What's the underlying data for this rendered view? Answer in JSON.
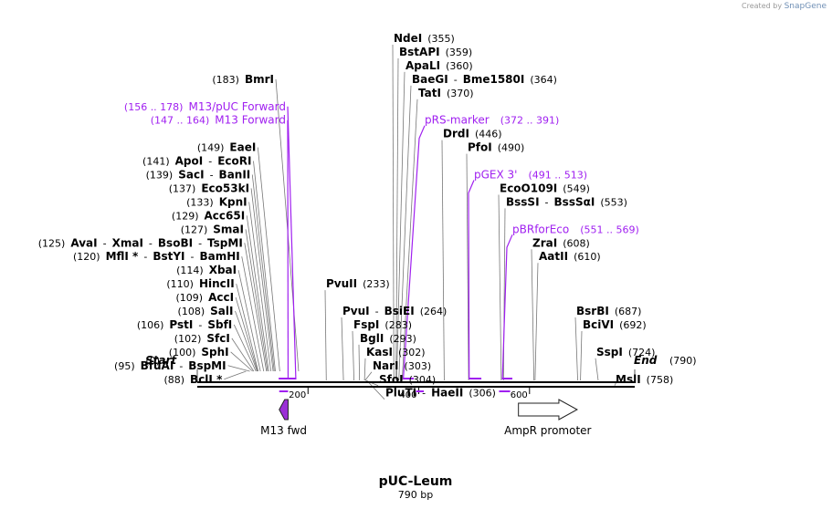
{
  "credit": {
    "prefix": "Created by",
    "brand": "SnapGene"
  },
  "map": {
    "name": "pUC-Leum",
    "length_text": "790 bp",
    "start_label": "Start",
    "start_pos": "(0)",
    "end_label": "End",
    "end_pos": "(790)",
    "total_bp": 790,
    "ticks": [
      {
        "bp": 200,
        "label": "200"
      },
      {
        "bp": 400,
        "label": "400"
      },
      {
        "bp": 600,
        "label": "600"
      }
    ]
  },
  "enzymes": [
    {
      "id": "bmri",
      "parts": [
        "BmrI"
      ],
      "pos": "(183)",
      "bp": 183,
      "posFirst": true,
      "row": 3
    },
    {
      "id": "eaei",
      "parts": [
        "EaeI"
      ],
      "pos": "(149)",
      "bp": 149,
      "posFirst": true,
      "row": 8
    },
    {
      "id": "apoi",
      "parts": [
        "ApoI",
        "EcoRI"
      ],
      "pos": "(141)",
      "bp": 141,
      "posFirst": true,
      "row": 9
    },
    {
      "id": "saci",
      "parts": [
        "SacI",
        "BanII"
      ],
      "pos": "(139)",
      "bp": 139,
      "posFirst": true,
      "row": 10
    },
    {
      "id": "eco53ki",
      "parts": [
        "Eco53kI"
      ],
      "pos": "(137)",
      "bp": 137,
      "posFirst": true,
      "row": 11
    },
    {
      "id": "kpni",
      "parts": [
        "KpnI"
      ],
      "pos": "(133)",
      "bp": 133,
      "posFirst": true,
      "row": 12
    },
    {
      "id": "acc65i",
      "parts": [
        "Acc65I"
      ],
      "pos": "(129)",
      "bp": 129,
      "posFirst": true,
      "row": 13
    },
    {
      "id": "smai",
      "parts": [
        "SmaI"
      ],
      "pos": "(127)",
      "bp": 127,
      "posFirst": true,
      "row": 14
    },
    {
      "id": "avai",
      "parts": [
        "AvaI",
        "XmaI",
        "BsoBI",
        "TspMI"
      ],
      "pos": "(125)",
      "bp": 125,
      "posFirst": true,
      "row": 15
    },
    {
      "id": "mfli",
      "parts": [
        "MflI *",
        "BstYI",
        "BamHI"
      ],
      "pos": "(120)",
      "bp": 120,
      "posFirst": true,
      "row": 16
    },
    {
      "id": "xbai",
      "parts": [
        "XbaI"
      ],
      "pos": "(114)",
      "bp": 114,
      "posFirst": true,
      "row": 17
    },
    {
      "id": "hincii",
      "parts": [
        "HincII"
      ],
      "pos": "(110)",
      "bp": 110,
      "posFirst": true,
      "row": 18
    },
    {
      "id": "acci",
      "parts": [
        "AccI"
      ],
      "pos": "(109)",
      "bp": 109,
      "posFirst": true,
      "row": 19
    },
    {
      "id": "sali",
      "parts": [
        "SalI"
      ],
      "pos": "(108)",
      "bp": 108,
      "posFirst": true,
      "row": 20
    },
    {
      "id": "psti",
      "parts": [
        "PstI",
        "SbfI"
      ],
      "pos": "(106)",
      "bp": 106,
      "posFirst": true,
      "row": 21
    },
    {
      "id": "sfci",
      "parts": [
        "SfcI"
      ],
      "pos": "(102)",
      "bp": 102,
      "posFirst": true,
      "row": 22
    },
    {
      "id": "sphi",
      "parts": [
        "SphI"
      ],
      "pos": "(100)",
      "bp": 100,
      "posFirst": true,
      "row": 23
    },
    {
      "id": "bfuai",
      "parts": [
        "BfuAI",
        "BspMI"
      ],
      "pos": "(95)",
      "bp": 95,
      "posFirst": true,
      "row": 24
    },
    {
      "id": "bcli",
      "parts": [
        "BclI *"
      ],
      "pos": "(88)",
      "bp": 88,
      "posFirst": true,
      "row": 25
    },
    {
      "id": "ndei",
      "parts": [
        "NdeI"
      ],
      "pos": "(355)",
      "bp": 355,
      "posFirst": false,
      "row": 0
    },
    {
      "id": "bstapi",
      "parts": [
        "BstAPI"
      ],
      "pos": "(359)",
      "bp": 359,
      "posFirst": false,
      "row": 1
    },
    {
      "id": "apali",
      "parts": [
        "ApaLI"
      ],
      "pos": "(360)",
      "bp": 360,
      "posFirst": false,
      "row": 2
    },
    {
      "id": "baegi",
      "parts": [
        "BaeGI",
        "Bme1580I"
      ],
      "pos": "(364)",
      "bp": 364,
      "posFirst": false,
      "row": 3
    },
    {
      "id": "tati",
      "parts": [
        "TatI"
      ],
      "pos": "(370)",
      "bp": 370,
      "posFirst": false,
      "row": 4
    },
    {
      "id": "drdi",
      "parts": [
        "DrdI"
      ],
      "pos": "(446)",
      "bp": 446,
      "posFirst": false,
      "row": 7
    },
    {
      "id": "pfoi",
      "parts": [
        "PfoI"
      ],
      "pos": "(490)",
      "bp": 490,
      "posFirst": false,
      "row": 8
    },
    {
      "id": "ecoo109i",
      "parts": [
        "EcoO109I"
      ],
      "pos": "(549)",
      "bp": 549,
      "posFirst": false,
      "row": 11
    },
    {
      "id": "bsssi",
      "parts": [
        "BssSI",
        "BssSαI"
      ],
      "pos": "(553)",
      "bp": 553,
      "posFirst": false,
      "row": 12
    },
    {
      "id": "zrai",
      "parts": [
        "ZraI"
      ],
      "pos": "(608)",
      "bp": 608,
      "posFirst": false,
      "row": 15
    },
    {
      "id": "aatii",
      "parts": [
        "AatII"
      ],
      "pos": "(610)",
      "bp": 610,
      "posFirst": false,
      "row": 16
    },
    {
      "id": "pvuii",
      "parts": [
        "PvuII"
      ],
      "pos": "(233)",
      "bp": 233,
      "posFirst": false,
      "row": 18
    },
    {
      "id": "pvui",
      "parts": [
        "PvuI",
        "BsiEI"
      ],
      "pos": "(264)",
      "bp": 264,
      "posFirst": false,
      "row": 20
    },
    {
      "id": "fspi",
      "parts": [
        "FspI"
      ],
      "pos": "(283)",
      "bp": 283,
      "posFirst": false,
      "row": 21
    },
    {
      "id": "bgli",
      "parts": [
        "BglI"
      ],
      "pos": "(293)",
      "bp": 293,
      "posFirst": false,
      "row": 22
    },
    {
      "id": "kasi",
      "parts": [
        "KasI"
      ],
      "pos": "(302)",
      "bp": 302,
      "posFirst": false,
      "row": 23
    },
    {
      "id": "nari",
      "parts": [
        "NarI"
      ],
      "pos": "(303)",
      "bp": 303,
      "posFirst": false,
      "row": 24
    },
    {
      "id": "sfoi",
      "parts": [
        "SfoI"
      ],
      "pos": "(304)",
      "bp": 304,
      "posFirst": false,
      "row": 25
    },
    {
      "id": "pluti",
      "parts": [
        "PluTI",
        "HaeII"
      ],
      "pos": "(306)",
      "bp": 306,
      "posFirst": false,
      "row": 26
    },
    {
      "id": "bsrbi",
      "parts": [
        "BsrBI"
      ],
      "pos": "(687)",
      "bp": 687,
      "posFirst": false,
      "row": 20
    },
    {
      "id": "bcivi",
      "parts": [
        "BciVI"
      ],
      "pos": "(692)",
      "bp": 692,
      "posFirst": false,
      "row": 21
    },
    {
      "id": "sspi",
      "parts": [
        "SspI"
      ],
      "pos": "(724)",
      "bp": 724,
      "posFirst": false,
      "row": 23
    },
    {
      "id": "msli",
      "parts": [
        "MslI"
      ],
      "pos": "(758)",
      "bp": 758,
      "posFirst": false,
      "row": 25
    }
  ],
  "primers": [
    {
      "id": "m13-puc-forward",
      "name": "M13/pUC Forward",
      "range": "(156 .. 178)",
      "start": 156,
      "end": 178,
      "posFirst": true,
      "row": 5
    },
    {
      "id": "m13-forward",
      "name": "M13 Forward",
      "range": "(147 .. 164)",
      "start": 147,
      "end": 164,
      "posFirst": true,
      "row": 6
    },
    {
      "id": "prs-marker",
      "name": "pRS-marker",
      "range": "(372 .. 391)",
      "start": 372,
      "end": 391,
      "posFirst": false,
      "row": 6
    },
    {
      "id": "pgex-3",
      "name": "pGEX 3'",
      "range": "(491 .. 513)",
      "start": 491,
      "end": 513,
      "posFirst": false,
      "row": 10
    },
    {
      "id": "pbrforeco",
      "name": "pBRforEco",
      "range": "(551 .. 569)",
      "start": 551,
      "end": 569,
      "posFirst": false,
      "row": 14
    }
  ],
  "features": [
    {
      "id": "m13-fwd",
      "name": "M13 fwd",
      "start": 148,
      "end": 164,
      "direction": "left",
      "color": "#9b2fd6"
    },
    {
      "id": "ampr-promoter",
      "name": "AmpR promoter",
      "start": 580,
      "end": 686,
      "direction": "right",
      "color": "#ffffff"
    }
  ],
  "colors": {
    "primer": "#a020f0",
    "line": "#000000",
    "leader": "#555555"
  }
}
